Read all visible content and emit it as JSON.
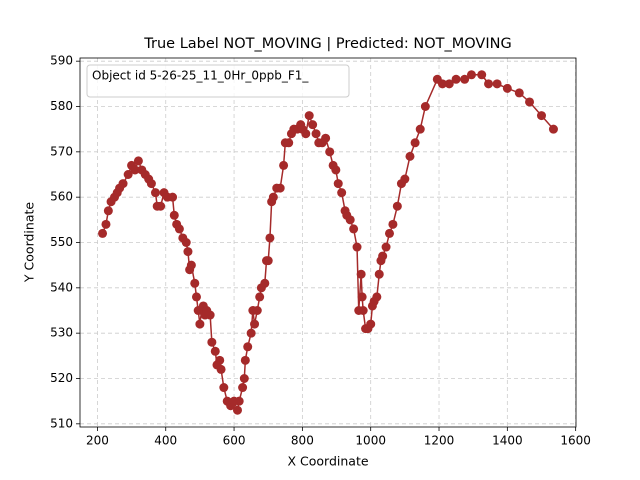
{
  "chart_data": {
    "type": "line",
    "title": "True Label NOT_MOVING | Predicted: NOT_MOVING",
    "x_label": "X Coordinate",
    "y_label": "Y Coordinate",
    "legend_title": "Object id 5-26-25_11_0Hr_0ppb_F1_",
    "legend_position": "upper left",
    "color": "#a52a2a",
    "grid": true,
    "marker": "circle",
    "xlim": [
      149,
      1601
    ],
    "ylim": [
      509.3,
      590.7
    ],
    "xticks": [
      200,
      400,
      600,
      800,
      1000,
      1200,
      1400,
      1600
    ],
    "yticks": [
      510,
      520,
      530,
      540,
      550,
      560,
      570,
      580,
      590
    ],
    "x": [
      215,
      225,
      232,
      240,
      250,
      258,
      265,
      275,
      290,
      300,
      310,
      320,
      330,
      340,
      350,
      358,
      370,
      375,
      385,
      395,
      405,
      420,
      425,
      432,
      440,
      450,
      460,
      465,
      470,
      475,
      485,
      490,
      495,
      500,
      505,
      510,
      515,
      520,
      530,
      535,
      545,
      550,
      558,
      562,
      570,
      580,
      590,
      600,
      610,
      615,
      625,
      630,
      633,
      640,
      650,
      655,
      660,
      668,
      675,
      680,
      690,
      695,
      700,
      705,
      710,
      715,
      725,
      735,
      745,
      750,
      760,
      768,
      775,
      785,
      795,
      800,
      810,
      820,
      830,
      840,
      848,
      858,
      868,
      880,
      890,
      898,
      905,
      915,
      925,
      930,
      940,
      950,
      960,
      965,
      972,
      975,
      978,
      985,
      992,
      1000,
      1005,
      1010,
      1018,
      1025,
      1030,
      1035,
      1045,
      1055,
      1065,
      1078,
      1090,
      1100,
      1115,
      1130,
      1145,
      1160,
      1195,
      1210,
      1230,
      1250,
      1275,
      1295,
      1325,
      1345,
      1370,
      1400,
      1435,
      1465,
      1500,
      1535
    ],
    "values": [
      552,
      554,
      557,
      559,
      560,
      561,
      562,
      563,
      565,
      567,
      566,
      568,
      566,
      565,
      564,
      563,
      561,
      558,
      558,
      561,
      560,
      560,
      556,
      554,
      553,
      551,
      550,
      548,
      544,
      545,
      541,
      538,
      535,
      532,
      535,
      536,
      534,
      535,
      534,
      528,
      526,
      523,
      524,
      522,
      518,
      515,
      514,
      515,
      513,
      515,
      518,
      520,
      524,
      527,
      530,
      535,
      532,
      535,
      538,
      540,
      541,
      546,
      546,
      551,
      559,
      560,
      562,
      562,
      567,
      572,
      572,
      574,
      575,
      575,
      576,
      575,
      574,
      578,
      576,
      574,
      572,
      572,
      573,
      570,
      567,
      566,
      563,
      561,
      557,
      556,
      555,
      553,
      549,
      535,
      543,
      538,
      535,
      531,
      531,
      532,
      536,
      537,
      538,
      543,
      546,
      547,
      549,
      552,
      554,
      558,
      563,
      564,
      569,
      572,
      575,
      580,
      586,
      585,
      585,
      586,
      586,
      587,
      587,
      585,
      585,
      584,
      583,
      581,
      578,
      575
    ]
  }
}
